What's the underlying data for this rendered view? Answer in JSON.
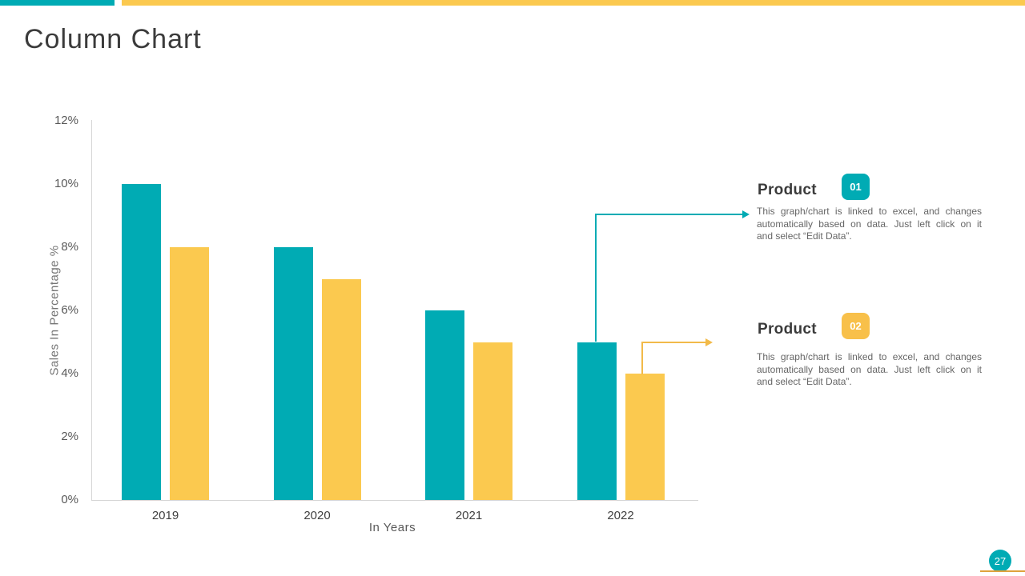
{
  "slide": {
    "title": "Column Chart",
    "page_number": "27"
  },
  "colors": {
    "teal": "#00ABB4",
    "yellow": "#FBC94F",
    "connector_yellow": "#F2BA49",
    "axis_line": "#D6D6D6",
    "title_text": "#3B3B3B",
    "tick_text": "#595959",
    "body_text": "#666666",
    "footer_line": "#DFA23C"
  },
  "chart_data": {
    "type": "bar",
    "title": "",
    "categories": [
      "2019",
      "2020",
      "2021",
      "2022"
    ],
    "series": [
      {
        "name": "Product 01",
        "color": "#00ABB4",
        "values": [
          10,
          8,
          6,
          5
        ]
      },
      {
        "name": "Product 02",
        "color": "#FBC94F",
        "values": [
          8,
          7,
          5,
          4
        ]
      }
    ],
    "xlabel": "In Years",
    "ylabel": "Sales In Percentage %",
    "ylim": [
      0,
      12
    ],
    "ytick_step": 2,
    "ytick_labels": [
      "12%",
      "10%",
      "8%",
      "6%",
      "4%",
      "2%",
      "0%"
    ],
    "grid": false,
    "legend_position": "none",
    "unit": "%"
  },
  "annotations": {
    "product1": {
      "heading": "Product",
      "badge": "01",
      "body_lines": [
        "This graph/chart is linked to excel, and changes",
        "automatically based on data. Just left click on it",
        "and select “Edit Data”."
      ]
    },
    "product2": {
      "heading": "Product",
      "badge": "02",
      "body_lines": [
        "This graph/chart is linked to excel, and changes",
        "automatically based on data. Just left click on it",
        "and select “Edit Data”."
      ]
    }
  }
}
